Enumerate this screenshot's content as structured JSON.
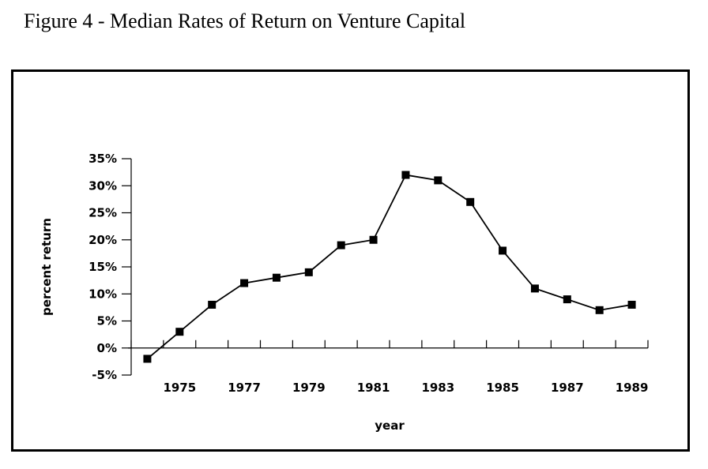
{
  "figure": {
    "title": "Figure 4 - Median Rates of Return on Venture Capital"
  },
  "chart_data": {
    "type": "line",
    "title": "",
    "xlabel": "year",
    "ylabel": "percent return",
    "x": [
      1974,
      1975,
      1976,
      1977,
      1978,
      1979,
      1980,
      1981,
      1982,
      1983,
      1984,
      1985,
      1986,
      1987,
      1988,
      1989
    ],
    "y": [
      -2,
      3,
      8,
      12,
      13,
      14,
      19,
      20,
      32,
      31,
      27,
      18,
      11,
      9,
      7,
      8
    ],
    "x_tick_labels": [
      "1975",
      "1977",
      "1979",
      "1981",
      "1983",
      "1985",
      "1987",
      "1989"
    ],
    "y_tick_labels": [
      "-5%",
      "0%",
      "5%",
      "10%",
      "15%",
      "20%",
      "25%",
      "30%",
      "35%"
    ],
    "y_ticks": [
      -5,
      0,
      5,
      10,
      15,
      20,
      25,
      30,
      35
    ],
    "ylim": [
      -5,
      35
    ],
    "xlim": [
      1973.5,
      1989.5
    ],
    "grid": false,
    "legend": "none",
    "marker": "square",
    "line_color": "#000000"
  }
}
